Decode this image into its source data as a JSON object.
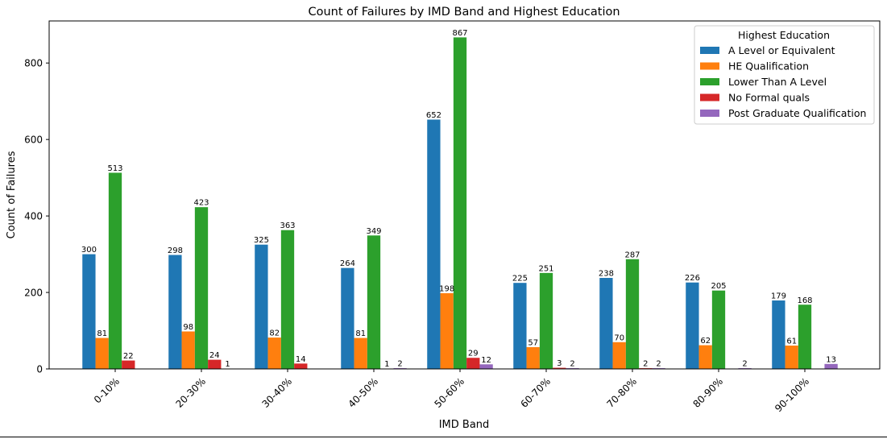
{
  "chart_data": {
    "type": "bar",
    "title": "Count of Failures by IMD Band and Highest Education",
    "xlabel": "IMD Band",
    "ylabel": "Count of Failures",
    "ylim": [
      0,
      910
    ],
    "yticks": [
      0,
      200,
      400,
      600,
      800
    ],
    "grid": false,
    "legend": {
      "title": "Highest Education",
      "placement": "top-right"
    },
    "categories": [
      "0-10%",
      "20-30%",
      "30-40%",
      "40-50%",
      "50-60%",
      "60-70%",
      "70-80%",
      "80-90%",
      "90-100%"
    ],
    "series": [
      {
        "name": "A Level or Equivalent",
        "color": "#1f77b4",
        "values": [
          300,
          298,
          325,
          264,
          652,
          225,
          238,
          226,
          179
        ]
      },
      {
        "name": "HE Qualification",
        "color": "#ff7f0e",
        "values": [
          81,
          98,
          82,
          81,
          198,
          57,
          70,
          62,
          61
        ]
      },
      {
        "name": "Lower Than A Level",
        "color": "#2ca02c",
        "values": [
          513,
          423,
          363,
          349,
          867,
          251,
          287,
          205,
          168
        ]
      },
      {
        "name": "No Formal quals",
        "color": "#d62728",
        "values": [
          22,
          24,
          14,
          1,
          29,
          3,
          2,
          null,
          null
        ]
      },
      {
        "name": "Post Graduate Qualification",
        "color": "#9467bd",
        "values": [
          null,
          1,
          null,
          2,
          12,
          2,
          2,
          2,
          13
        ]
      }
    ]
  }
}
